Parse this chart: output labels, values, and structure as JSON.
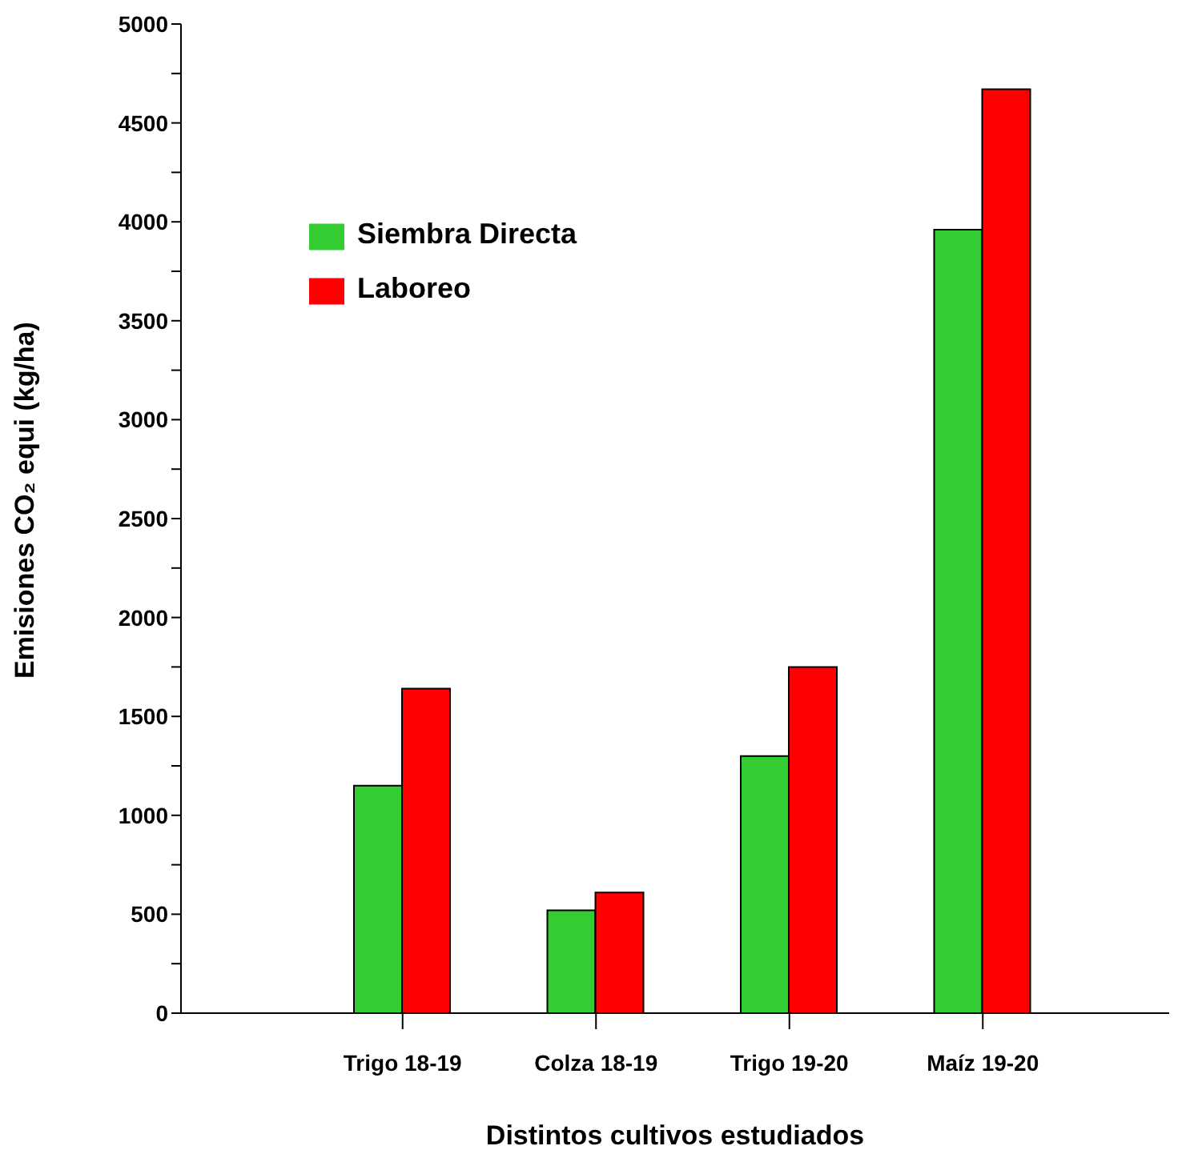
{
  "chart_data": {
    "type": "bar",
    "xlabel": "Distintos cultivos estudiados",
    "ylabel": "Emisiones CO₂ equi (kg/ha)",
    "categories": [
      "Trigo 18-19",
      "Colza 18-19",
      "Trigo 19-20",
      "Maíz 19-20"
    ],
    "series": [
      {
        "name": "Siembra Directa",
        "color": "#33cc33",
        "values": [
          1150,
          520,
          1300,
          3960
        ]
      },
      {
        "name": "Laboreo",
        "color": "#ff0000",
        "values": [
          1640,
          610,
          1750,
          4670
        ]
      }
    ],
    "ylim": [
      0,
      5000
    ],
    "yticks": [
      0,
      {
        "value": 250,
        "label": null
      },
      500,
      {
        "value": 750,
        "label": null
      },
      1000,
      {
        "value": 1250,
        "label": null
      },
      1500,
      {
        "value": 1750,
        "label": null
      },
      2000,
      {
        "value": 2250,
        "label": null
      },
      2500,
      {
        "value": 2750,
        "label": null
      },
      3000,
      {
        "value": 3250,
        "label": null
      },
      3500,
      {
        "value": 3750,
        "label": null
      },
      4000,
      {
        "value": 4250,
        "label": null
      },
      4500,
      {
        "value": 4750,
        "label": null
      },
      5000
    ],
    "grid": false,
    "legend": "top left"
  }
}
